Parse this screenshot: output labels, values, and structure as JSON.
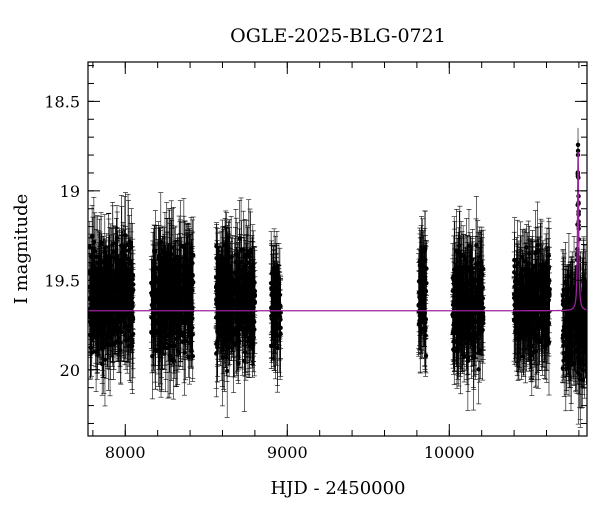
{
  "chart_data": {
    "type": "scatter",
    "title": "OGLE-2025-BLG-0721",
    "xlabel": "HJD - 2450000",
    "ylabel": "I magnitude",
    "xlim": [
      7770,
      10850
    ],
    "ylim": [
      20.37,
      18.28
    ],
    "y_inverted": true,
    "x_ticks": [
      8000,
      9000,
      10000
    ],
    "y_ticks": [
      18.5,
      19,
      19.5,
      20
    ],
    "grid": false,
    "legend": "none",
    "colors": {
      "points": "#000000",
      "model": "#a020a0"
    },
    "series": [
      {
        "kind": "observations",
        "seasons": [
          {
            "x_range": [
              7780,
              8050
            ],
            "center_mag": 19.6,
            "scatter": 0.42
          },
          {
            "x_range": [
              8160,
              8420
            ],
            "center_mag": 19.6,
            "scatter": 0.4
          },
          {
            "x_range": [
              8560,
              8800
            ],
            "center_mag": 19.62,
            "scatter": 0.42
          },
          {
            "x_range": [
              8900,
              8960
            ],
            "center_mag": 19.65,
            "scatter": 0.3
          },
          {
            "x_range": [
              9810,
              9860
            ],
            "center_mag": 19.6,
            "scatter": 0.38
          },
          {
            "x_range": [
              10020,
              10210
            ],
            "center_mag": 19.62,
            "scatter": 0.4
          },
          {
            "x_range": [
              10400,
              10620
            ],
            "center_mag": 19.63,
            "scatter": 0.38
          },
          {
            "x_range": [
              10700,
              10850
            ],
            "center_mag": 19.75,
            "scatter": 0.35
          }
        ]
      },
      {
        "kind": "model",
        "baseline_mag": 19.67,
        "peak_x": 10795,
        "peak_mag": 18.78,
        "width_days": 4
      }
    ]
  }
}
